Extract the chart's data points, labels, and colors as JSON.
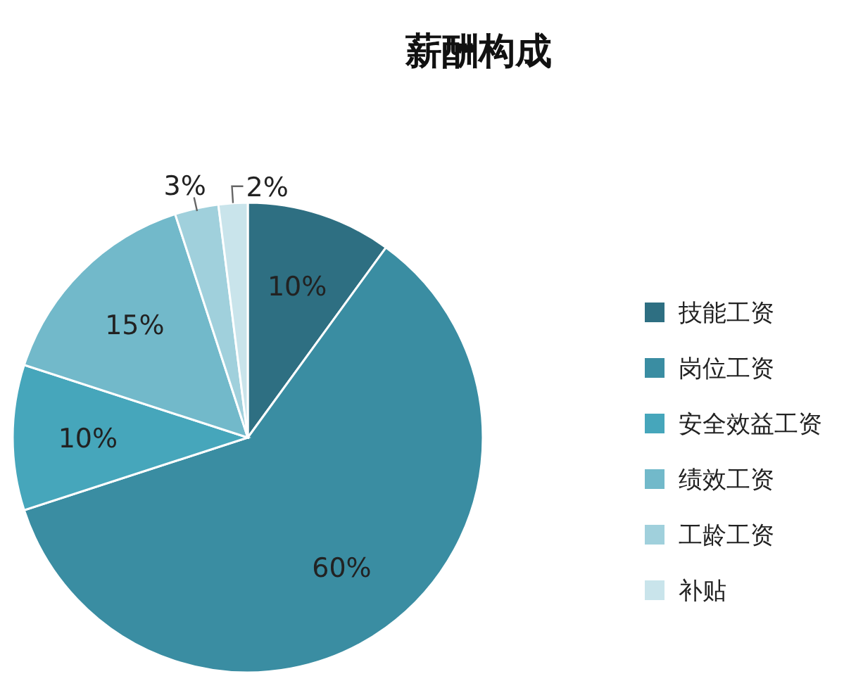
{
  "chart_data": {
    "type": "pie",
    "title": "薪酬构成",
    "categories": [
      "技能工资",
      "岗位工资",
      "安全效益工资",
      "绩效工资",
      "工龄工资",
      "补贴"
    ],
    "values": [
      10,
      60,
      10,
      15,
      3,
      2
    ],
    "value_labels": [
      "10%",
      "60%",
      "10%",
      "15%",
      "3%",
      "2%"
    ],
    "colors": [
      "#2e6f82",
      "#3a8da2",
      "#46a6bb",
      "#72b9ca",
      "#a0d0dc",
      "#c9e4eb"
    ],
    "legend": "right"
  }
}
